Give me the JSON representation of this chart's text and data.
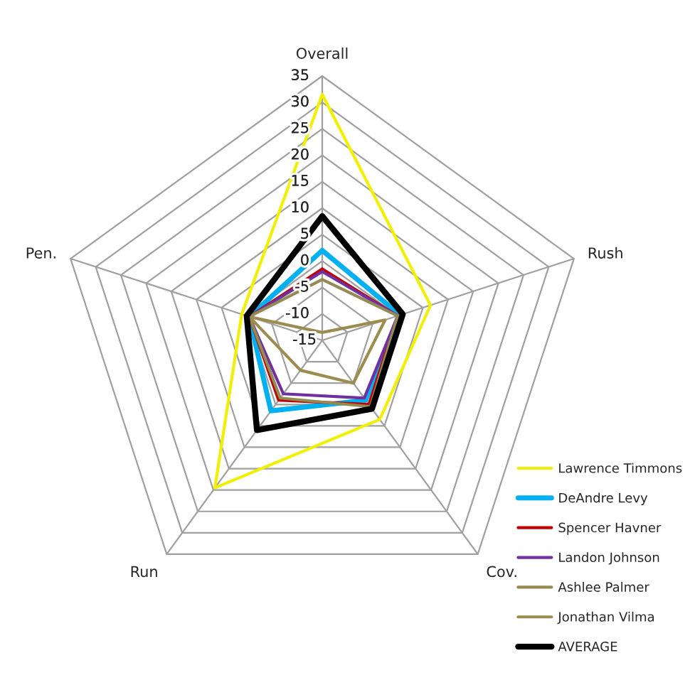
{
  "chart_data": {
    "type": "radar",
    "categories": [
      "Overall",
      "Rush",
      "Cov.",
      "Run",
      "Pen."
    ],
    "ylim": [
      -15,
      35
    ],
    "yticks": [
      -15,
      -10,
      -5,
      0,
      5,
      10,
      15,
      20,
      25,
      30,
      35
    ],
    "grid": true,
    "legend": "bottom right",
    "series": [
      {
        "name": "Lawrence Timmons",
        "color": "#f0f000",
        "values": [
          31.5,
          6.5,
          3.5,
          19.5,
          1
        ]
      },
      {
        "name": "DeAndre Levy",
        "color": "#00b0f0",
        "values": [
          2,
          0.5,
          -1,
          1.5,
          -0.5
        ]
      },
      {
        "name": "Spencer Havner",
        "color": "#c00000",
        "values": [
          -1.5,
          0,
          0,
          -1,
          -0.5
        ]
      },
      {
        "name": "Landon Johnson",
        "color": "#7030a0",
        "values": [
          -2,
          0,
          -1.5,
          -2.5,
          -0.5
        ]
      },
      {
        "name": "Ashlee Palmer",
        "color": "#948a54",
        "values": [
          -3.5,
          0,
          0.5,
          -1.5,
          -0.5
        ]
      },
      {
        "name": "Jonathan Vilma",
        "color": "#9c8c50",
        "values": [
          -13.5,
          -2.5,
          -5,
          -8,
          -0.5
        ]
      },
      {
        "name": "AVERAGE",
        "color": "#000000",
        "values": [
          8.5,
          1,
          1,
          6,
          0
        ]
      }
    ]
  }
}
